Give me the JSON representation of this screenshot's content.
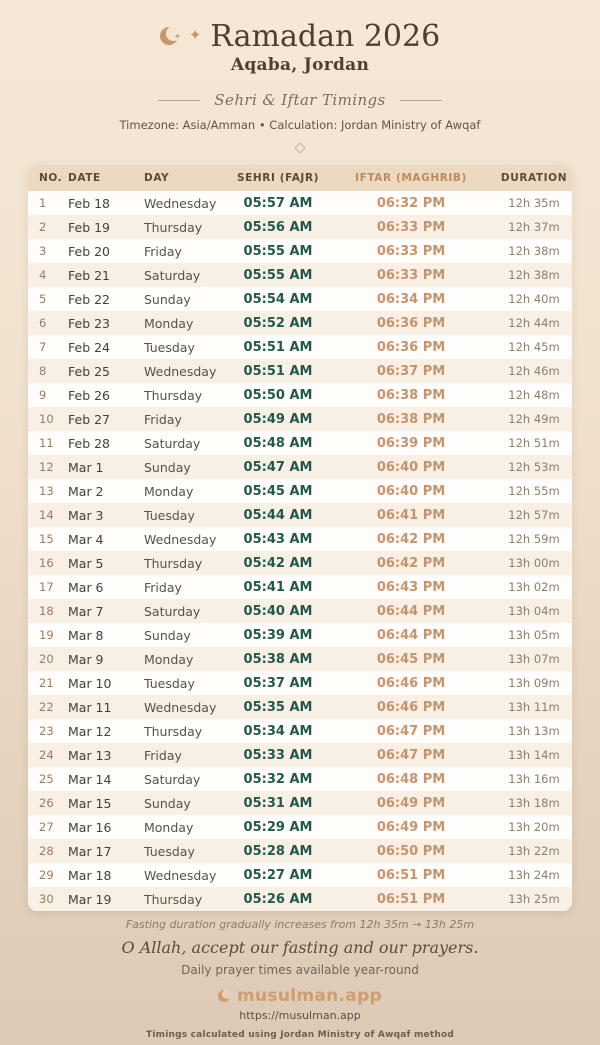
{
  "header": {
    "title": "Ramadan 2026",
    "location": "Aqaba, Jordan",
    "subtitle": "Sehri & Iftar Timings",
    "meta": "Timezone: Asia/Amman • Calculation: Jordan Ministry of Awqaf",
    "moon_star_glyph": "✦",
    "sparkle_glyph": "✦"
  },
  "table": {
    "columns": [
      "NO.",
      "DATE",
      "DAY",
      "SEHRI (FAJR)",
      "IFTAR (MAGHRIB)",
      "DURATION"
    ],
    "rows": [
      {
        "no": "1",
        "date": "Feb 18",
        "day": "Wednesday",
        "sehri": "05:57 AM",
        "iftar": "06:32 PM",
        "duration": "12h 35m"
      },
      {
        "no": "2",
        "date": "Feb 19",
        "day": "Thursday",
        "sehri": "05:56 AM",
        "iftar": "06:33 PM",
        "duration": "12h 37m"
      },
      {
        "no": "3",
        "date": "Feb 20",
        "day": "Friday",
        "sehri": "05:55 AM",
        "iftar": "06:33 PM",
        "duration": "12h 38m"
      },
      {
        "no": "4",
        "date": "Feb 21",
        "day": "Saturday",
        "sehri": "05:55 AM",
        "iftar": "06:33 PM",
        "duration": "12h 38m"
      },
      {
        "no": "5",
        "date": "Feb 22",
        "day": "Sunday",
        "sehri": "05:54 AM",
        "iftar": "06:34 PM",
        "duration": "12h 40m"
      },
      {
        "no": "6",
        "date": "Feb 23",
        "day": "Monday",
        "sehri": "05:52 AM",
        "iftar": "06:36 PM",
        "duration": "12h 44m"
      },
      {
        "no": "7",
        "date": "Feb 24",
        "day": "Tuesday",
        "sehri": "05:51 AM",
        "iftar": "06:36 PM",
        "duration": "12h 45m"
      },
      {
        "no": "8",
        "date": "Feb 25",
        "day": "Wednesday",
        "sehri": "05:51 AM",
        "iftar": "06:37 PM",
        "duration": "12h 46m"
      },
      {
        "no": "9",
        "date": "Feb 26",
        "day": "Thursday",
        "sehri": "05:50 AM",
        "iftar": "06:38 PM",
        "duration": "12h 48m"
      },
      {
        "no": "10",
        "date": "Feb 27",
        "day": "Friday",
        "sehri": "05:49 AM",
        "iftar": "06:38 PM",
        "duration": "12h 49m"
      },
      {
        "no": "11",
        "date": "Feb 28",
        "day": "Saturday",
        "sehri": "05:48 AM",
        "iftar": "06:39 PM",
        "duration": "12h 51m"
      },
      {
        "no": "12",
        "date": "Mar 1",
        "day": "Sunday",
        "sehri": "05:47 AM",
        "iftar": "06:40 PM",
        "duration": "12h 53m"
      },
      {
        "no": "13",
        "date": "Mar 2",
        "day": "Monday",
        "sehri": "05:45 AM",
        "iftar": "06:40 PM",
        "duration": "12h 55m"
      },
      {
        "no": "14",
        "date": "Mar 3",
        "day": "Tuesday",
        "sehri": "05:44 AM",
        "iftar": "06:41 PM",
        "duration": "12h 57m"
      },
      {
        "no": "15",
        "date": "Mar 4",
        "day": "Wednesday",
        "sehri": "05:43 AM",
        "iftar": "06:42 PM",
        "duration": "12h 59m"
      },
      {
        "no": "16",
        "date": "Mar 5",
        "day": "Thursday",
        "sehri": "05:42 AM",
        "iftar": "06:42 PM",
        "duration": "13h 00m"
      },
      {
        "no": "17",
        "date": "Mar 6",
        "day": "Friday",
        "sehri": "05:41 AM",
        "iftar": "06:43 PM",
        "duration": "13h 02m"
      },
      {
        "no": "18",
        "date": "Mar 7",
        "day": "Saturday",
        "sehri": "05:40 AM",
        "iftar": "06:44 PM",
        "duration": "13h 04m"
      },
      {
        "no": "19",
        "date": "Mar 8",
        "day": "Sunday",
        "sehri": "05:39 AM",
        "iftar": "06:44 PM",
        "duration": "13h 05m"
      },
      {
        "no": "20",
        "date": "Mar 9",
        "day": "Monday",
        "sehri": "05:38 AM",
        "iftar": "06:45 PM",
        "duration": "13h 07m"
      },
      {
        "no": "21",
        "date": "Mar 10",
        "day": "Tuesday",
        "sehri": "05:37 AM",
        "iftar": "06:46 PM",
        "duration": "13h 09m"
      },
      {
        "no": "22",
        "date": "Mar 11",
        "day": "Wednesday",
        "sehri": "05:35 AM",
        "iftar": "06:46 PM",
        "duration": "13h 11m"
      },
      {
        "no": "23",
        "date": "Mar 12",
        "day": "Thursday",
        "sehri": "05:34 AM",
        "iftar": "06:47 PM",
        "duration": "13h 13m"
      },
      {
        "no": "24",
        "date": "Mar 13",
        "day": "Friday",
        "sehri": "05:33 AM",
        "iftar": "06:47 PM",
        "duration": "13h 14m"
      },
      {
        "no": "25",
        "date": "Mar 14",
        "day": "Saturday",
        "sehri": "05:32 AM",
        "iftar": "06:48 PM",
        "duration": "13h 16m"
      },
      {
        "no": "26",
        "date": "Mar 15",
        "day": "Sunday",
        "sehri": "05:31 AM",
        "iftar": "06:49 PM",
        "duration": "13h 18m"
      },
      {
        "no": "27",
        "date": "Mar 16",
        "day": "Monday",
        "sehri": "05:29 AM",
        "iftar": "06:49 PM",
        "duration": "13h 20m"
      },
      {
        "no": "28",
        "date": "Mar 17",
        "day": "Tuesday",
        "sehri": "05:28 AM",
        "iftar": "06:50 PM",
        "duration": "13h 22m"
      },
      {
        "no": "29",
        "date": "Mar 18",
        "day": "Wednesday",
        "sehri": "05:27 AM",
        "iftar": "06:51 PM",
        "duration": "13h 24m"
      },
      {
        "no": "30",
        "date": "Mar 19",
        "day": "Thursday",
        "sehri": "05:26 AM",
        "iftar": "06:51 PM",
        "duration": "13h 25m"
      }
    ]
  },
  "footer": {
    "fasting_note": "Fasting duration gradually increases from 12h 35m → 13h 25m",
    "dua": "O Allah, accept our fasting and our prayers.",
    "availability": "Daily prayer times available year-round",
    "brand": "musulman.app",
    "url": "https://musulman.app",
    "method_note": "Timings calculated using Jordan Ministry of Awqaf method"
  },
  "colors": {
    "accent_tan": "#c9976b",
    "sehri_green": "#215a4c",
    "iftar_tan": "#c6936a",
    "title_brown": "#4c4034",
    "header_row_bg": "#ecd9c1",
    "page_bg_top": "#f5e8d7",
    "page_bg_bottom": "#dccab6"
  }
}
